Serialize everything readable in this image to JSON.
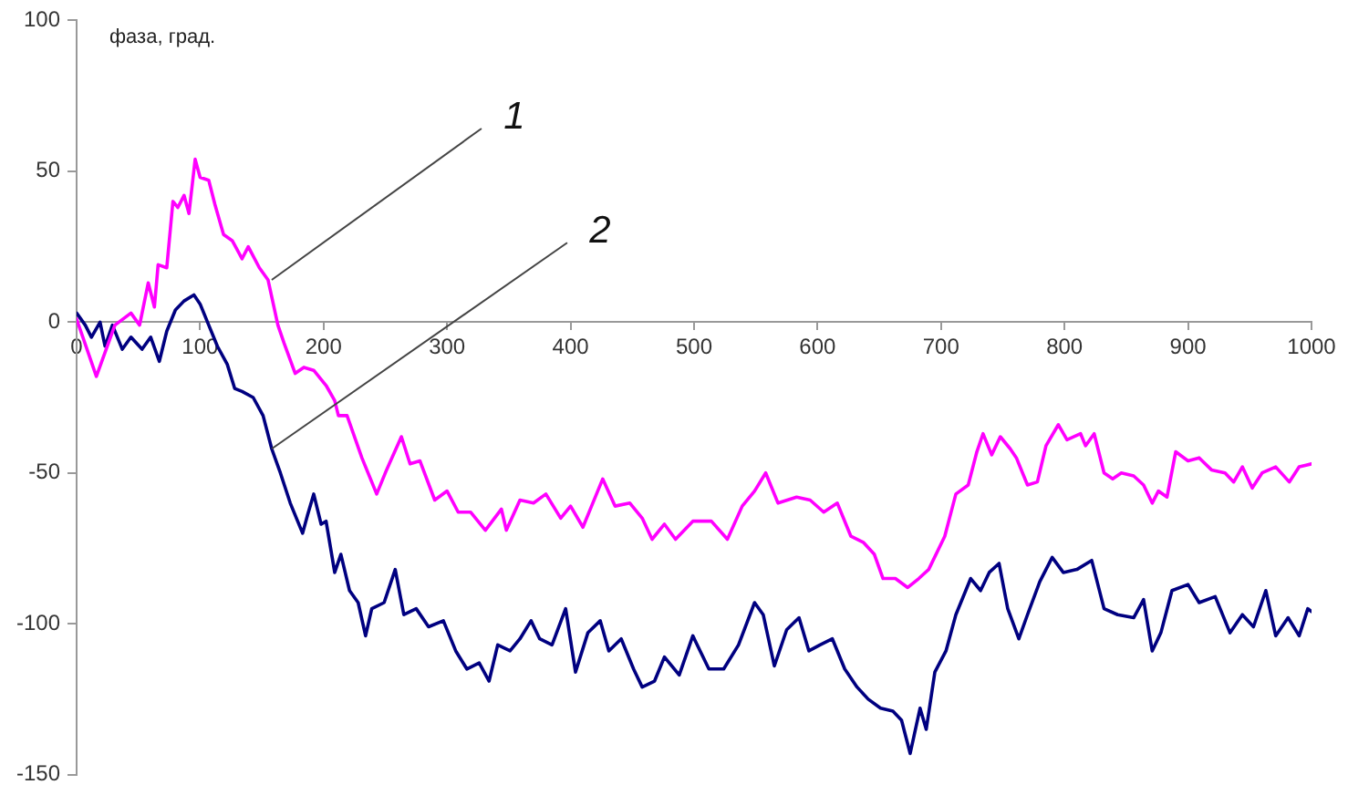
{
  "chart_data": {
    "type": "line",
    "ylabel": "фаза, град.",
    "xlim": [
      0,
      1000
    ],
    "xticks": [
      0,
      100,
      200,
      300,
      400,
      500,
      600,
      700,
      800,
      900,
      1000
    ],
    "ylim": [
      -150,
      100
    ],
    "yticks": [
      -150,
      -100,
      -50,
      0,
      50,
      100
    ],
    "grid": false,
    "marker": "none",
    "line_style": "solid",
    "series": [
      {
        "color": "#ff00ff",
        "x": [
          0,
          16,
          31,
          44,
          51,
          58,
          63,
          66,
          73,
          78,
          82,
          87,
          91,
          96,
          100,
          107,
          112,
          119,
          126,
          134,
          139,
          148,
          155,
          163,
          168,
          177,
          184,
          192,
          202,
          209,
          212,
          219,
          231,
          243,
          251,
          263,
          270,
          278,
          290,
          300,
          309,
          319,
          331,
          344,
          348,
          359,
          370,
          380,
          392,
          400,
          410,
          417,
          426,
          436,
          448,
          458,
          466,
          476,
          485,
          499,
          514,
          527,
          539,
          549,
          558,
          568,
          583,
          594,
          605,
          616,
          627,
          637,
          646,
          653,
          663,
          673,
          682,
          690,
          703,
          712,
          722,
          729,
          734,
          741,
          748,
          756,
          761,
          770,
          778,
          785,
          795,
          802,
          813,
          817,
          824,
          832,
          839,
          846,
          856,
          864,
          871,
          876,
          883,
          890,
          900,
          909,
          919,
          930,
          937,
          944,
          952,
          960,
          971,
          982,
          990,
          1000
        ],
        "values": [
          1,
          -18,
          -1,
          3,
          -1,
          13,
          5,
          19,
          18,
          40,
          38,
          42,
          36,
          54,
          48,
          47,
          39,
          29,
          27,
          21,
          25,
          18,
          14,
          -1,
          -7,
          -17,
          -15,
          -16,
          -21,
          -26,
          -31,
          -31,
          -45,
          -57,
          -49,
          -38,
          -47,
          -46,
          -59,
          -56,
          -63,
          -63,
          -69,
          -62,
          -69,
          -59,
          -60,
          -57,
          -65,
          -61,
          -68,
          -61,
          -52,
          -61,
          -60,
          -65,
          -72,
          -67,
          -72,
          -66,
          -66,
          -72,
          -61,
          -56,
          -50,
          -60,
          -58,
          -59,
          -63,
          -60,
          -71,
          -73,
          -77,
          -85,
          -85,
          -88,
          -85,
          -82,
          -71,
          -57,
          -54,
          -43,
          -37,
          -44,
          -38,
          -42,
          -45,
          -54,
          -53,
          -41,
          -34,
          -39,
          -37,
          -41,
          -37,
          -50,
          -52,
          -50,
          -51,
          -54,
          -60,
          -56,
          -58,
          -43,
          -46,
          -45,
          -49,
          -50,
          -53,
          -48,
          -55,
          -50,
          -48,
          -53,
          -48,
          -47
        ]
      },
      {
        "color": "#000080",
        "x": [
          0,
          7,
          12,
          19,
          23,
          29,
          37,
          44,
          53,
          60,
          67,
          73,
          80,
          87,
          95,
          100,
          107,
          114,
          122,
          128,
          134,
          143,
          151,
          158,
          165,
          173,
          183,
          187,
          192,
          198,
          202,
          209,
          214,
          221,
          228,
          234,
          239,
          249,
          258,
          265,
          275,
          285,
          297,
          307,
          316,
          326,
          334,
          341,
          351,
          359,
          368,
          375,
          385,
          396,
          404,
          414,
          424,
          431,
          441,
          451,
          458,
          468,
          476,
          488,
          499,
          512,
          524,
          536,
          549,
          556,
          565,
          575,
          585,
          593,
          602,
          612,
          622,
          632,
          641,
          651,
          661,
          668,
          675,
          683,
          688,
          695,
          704,
          712,
          724,
          732,
          739,
          747,
          754,
          763,
          770,
          780,
          790,
          799,
          810,
          822,
          832,
          843,
          856,
          864,
          871,
          878,
          887,
          900,
          909,
          922,
          934,
          944,
          953,
          963,
          971,
          981,
          990,
          997,
          1000
        ],
        "values": [
          3,
          -1,
          -5,
          0,
          -8,
          -1,
          -9,
          -5,
          -9,
          -5,
          -13,
          -3,
          4,
          7,
          9,
          6,
          -1,
          -8,
          -14,
          -22,
          -23,
          -25,
          -31,
          -42,
          -50,
          -60,
          -70,
          -64,
          -57,
          -67,
          -66,
          -83,
          -77,
          -89,
          -93,
          -104,
          -95,
          -93,
          -82,
          -97,
          -95,
          -101,
          -99,
          -109,
          -115,
          -113,
          -119,
          -107,
          -109,
          -105,
          -99,
          -105,
          -107,
          -95,
          -116,
          -103,
          -99,
          -109,
          -105,
          -115,
          -121,
          -119,
          -111,
          -117,
          -104,
          -115,
          -115,
          -107,
          -93,
          -97,
          -114,
          -102,
          -98,
          -109,
          -107,
          -105,
          -115,
          -121,
          -125,
          -128,
          -129,
          -132,
          -143,
          -128,
          -135,
          -116,
          -109,
          -97,
          -85,
          -89,
          -83,
          -80,
          -95,
          -105,
          -97,
          -86,
          -78,
          -83,
          -82,
          -79,
          -95,
          -97,
          -98,
          -92,
          -109,
          -103,
          -89,
          -87,
          -93,
          -91,
          -103,
          -97,
          -101,
          -89,
          -104,
          -98,
          -104,
          -95,
          -96
        ]
      }
    ],
    "annotations": [
      {
        "text": "1",
        "x": 158,
        "y": 14
      },
      {
        "text": "2",
        "x": 158,
        "y": -42
      }
    ]
  }
}
